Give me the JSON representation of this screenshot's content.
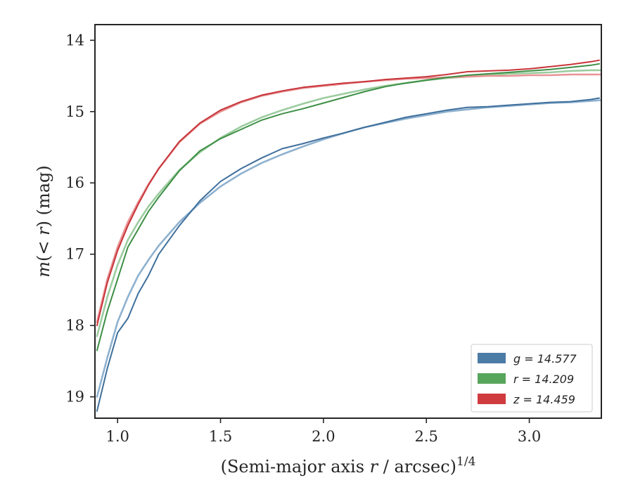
{
  "chart_data": {
    "type": "line",
    "xlabel": "(Semi-major axis r / arcsec)",
    "xlabel_prefix": "(Semi-major axis ",
    "xlabel_var": "r",
    "xlabel_suffix": " / arcsec)",
    "xlabel_sup": "1/4",
    "ylabel": "m(< r) (mag)",
    "ylabel_prefix": "m",
    "ylabel_mid": "(< ",
    "ylabel_var": "r",
    "ylabel_suffix": ") (mag)",
    "xlim": [
      0.89,
      3.35
    ],
    "ylim": [
      19.3,
      13.78
    ],
    "y_inverted": true,
    "x_ticks": [
      1.0,
      1.5,
      2.0,
      2.5,
      3.0
    ],
    "x_tick_labels": [
      "1.0",
      "1.5",
      "2.0",
      "2.5",
      "3.0"
    ],
    "y_ticks": [
      14,
      15,
      16,
      17,
      18,
      19
    ],
    "y_tick_labels": [
      "14",
      "15",
      "16",
      "17",
      "18",
      "19"
    ],
    "grid": false,
    "legend_position": "lower-right",
    "legend": [
      {
        "label": "g = 14.577",
        "color": "#4c7ba6"
      },
      {
        "label": "r = 14.209",
        "color": "#58a55c"
      },
      {
        "label": "z = 14.459",
        "color": "#d03b3f"
      }
    ],
    "series": [
      {
        "name": "g",
        "style": "data",
        "color": "#3f6f9c",
        "x": [
          0.9,
          0.95,
          1.0,
          1.05,
          1.1,
          1.15,
          1.2,
          1.3,
          1.4,
          1.5,
          1.6,
          1.7,
          1.8,
          1.9,
          2.0,
          2.1,
          2.2,
          2.3,
          2.4,
          2.5,
          2.6,
          2.7,
          2.8,
          2.9,
          3.0,
          3.1,
          3.2,
          3.3,
          3.34
        ],
        "y": [
          19.2,
          18.6,
          18.1,
          17.9,
          17.55,
          17.3,
          17.0,
          16.6,
          16.25,
          15.98,
          15.8,
          15.65,
          15.52,
          15.45,
          15.37,
          15.3,
          15.22,
          15.15,
          15.08,
          15.03,
          14.98,
          14.94,
          14.93,
          14.91,
          14.89,
          14.87,
          14.86,
          14.83,
          14.81
        ]
      },
      {
        "name": "g",
        "style": "model",
        "color": "#8eb1cf",
        "x": [
          0.9,
          0.95,
          1.0,
          1.05,
          1.1,
          1.15,
          1.2,
          1.3,
          1.4,
          1.5,
          1.6,
          1.7,
          1.8,
          1.9,
          2.0,
          2.1,
          2.2,
          2.3,
          2.4,
          2.5,
          2.6,
          2.7,
          2.8,
          2.9,
          3.0,
          3.1,
          3.2,
          3.3,
          3.35
        ],
        "y": [
          19.0,
          18.45,
          17.95,
          17.6,
          17.3,
          17.08,
          16.88,
          16.55,
          16.28,
          16.05,
          15.87,
          15.72,
          15.6,
          15.49,
          15.39,
          15.3,
          15.22,
          15.16,
          15.1,
          15.05,
          15.0,
          14.97,
          14.94,
          14.92,
          14.9,
          14.88,
          14.87,
          14.85,
          14.84
        ]
      },
      {
        "name": "r",
        "style": "data",
        "color": "#3d8f45",
        "x": [
          0.9,
          0.95,
          1.0,
          1.05,
          1.1,
          1.15,
          1.2,
          1.3,
          1.4,
          1.5,
          1.6,
          1.7,
          1.8,
          1.9,
          2.0,
          2.1,
          2.2,
          2.3,
          2.4,
          2.5,
          2.6,
          2.7,
          2.8,
          2.9,
          3.0,
          3.1,
          3.2,
          3.3,
          3.34
        ],
        "y": [
          18.35,
          17.8,
          17.35,
          16.9,
          16.65,
          16.4,
          16.2,
          15.83,
          15.55,
          15.38,
          15.25,
          15.12,
          15.03,
          14.96,
          14.88,
          14.8,
          14.72,
          14.65,
          14.6,
          14.56,
          14.52,
          14.49,
          14.47,
          14.45,
          14.43,
          14.41,
          14.38,
          14.35,
          14.33
        ]
      },
      {
        "name": "r",
        "style": "model",
        "color": "#9ccc9f",
        "x": [
          0.9,
          0.95,
          1.0,
          1.05,
          1.1,
          1.15,
          1.2,
          1.3,
          1.4,
          1.5,
          1.6,
          1.7,
          1.8,
          1.9,
          2.0,
          2.1,
          2.2,
          2.3,
          2.4,
          2.5,
          2.6,
          2.7,
          2.8,
          2.9,
          3.0,
          3.1,
          3.2,
          3.3,
          3.35
        ],
        "y": [
          18.15,
          17.6,
          17.15,
          16.8,
          16.55,
          16.33,
          16.15,
          15.82,
          15.57,
          15.37,
          15.21,
          15.08,
          14.98,
          14.89,
          14.81,
          14.75,
          14.69,
          14.64,
          14.6,
          14.56,
          14.53,
          14.51,
          14.49,
          14.47,
          14.46,
          14.45,
          14.43,
          14.42,
          14.42
        ]
      },
      {
        "name": "z",
        "style": "data",
        "color": "#c8353a",
        "x": [
          0.9,
          0.95,
          1.0,
          1.05,
          1.1,
          1.15,
          1.2,
          1.3,
          1.4,
          1.5,
          1.6,
          1.7,
          1.8,
          1.9,
          2.0,
          2.1,
          2.2,
          2.3,
          2.4,
          2.5,
          2.6,
          2.7,
          2.8,
          2.9,
          3.0,
          3.1,
          3.2,
          3.3,
          3.34
        ],
        "y": [
          18.0,
          17.4,
          16.95,
          16.6,
          16.3,
          16.03,
          15.8,
          15.42,
          15.16,
          14.98,
          14.86,
          14.77,
          14.71,
          14.66,
          14.63,
          14.6,
          14.58,
          14.55,
          14.53,
          14.51,
          14.48,
          14.44,
          14.43,
          14.42,
          14.4,
          14.37,
          14.34,
          14.3,
          14.28
        ]
      },
      {
        "name": "z",
        "style": "model",
        "color": "#e89395",
        "x": [
          0.9,
          0.95,
          1.0,
          1.05,
          1.1,
          1.15,
          1.2,
          1.3,
          1.4,
          1.5,
          1.6,
          1.7,
          1.8,
          1.9,
          2.0,
          2.1,
          2.2,
          2.3,
          2.4,
          2.5,
          2.6,
          2.7,
          2.8,
          2.9,
          3.0,
          3.1,
          3.2,
          3.3,
          3.35
        ],
        "y": [
          17.95,
          17.35,
          16.9,
          16.55,
          16.27,
          16.02,
          15.8,
          15.43,
          15.17,
          15.0,
          14.87,
          14.78,
          14.72,
          14.67,
          14.64,
          14.61,
          14.58,
          14.56,
          14.54,
          14.53,
          14.52,
          14.51,
          14.5,
          14.5,
          14.49,
          14.49,
          14.48,
          14.48,
          14.48
        ]
      }
    ]
  }
}
